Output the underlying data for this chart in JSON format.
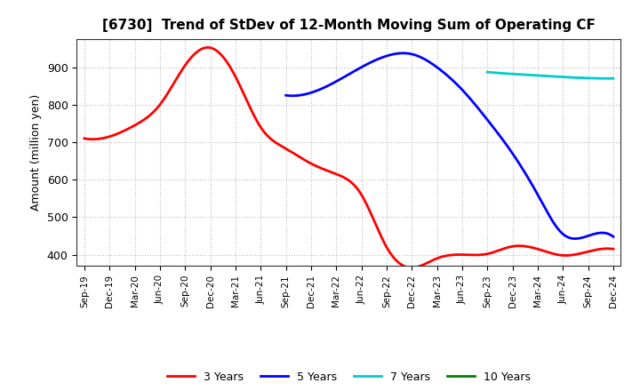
{
  "title": "[6730]  Trend of StDev of 12-Month Moving Sum of Operating CF",
  "ylabel": "Amount (million yen)",
  "background_color": "#ffffff",
  "plot_bg_color": "#ffffff",
  "grid_color": "#aaaaaa",
  "ylim": [
    370,
    975
  ],
  "yticks": [
    400,
    500,
    600,
    700,
    800,
    900
  ],
  "legend_entries": [
    "3 Years",
    "5 Years",
    "7 Years",
    "10 Years"
  ],
  "legend_colors": [
    "#ff0000",
    "#0000ff",
    "#00cccc",
    "#008000"
  ],
  "x_labels": [
    "Sep-19",
    "Dec-19",
    "Mar-20",
    "Jun-20",
    "Sep-20",
    "Dec-20",
    "Mar-21",
    "Jun-21",
    "Sep-21",
    "Dec-21",
    "Mar-22",
    "Jun-22",
    "Sep-22",
    "Dec-22",
    "Mar-23",
    "Jun-23",
    "Sep-23",
    "Dec-23",
    "Mar-24",
    "Jun-24",
    "Sep-24",
    "Dec-24"
  ],
  "series_3y_x": [
    0,
    1,
    2,
    3,
    4,
    5,
    6,
    7,
    8,
    9,
    10,
    11,
    12,
    13,
    14,
    15,
    16,
    17,
    18,
    19,
    20,
    21
  ],
  "series_3y_y": [
    710,
    715,
    745,
    800,
    905,
    952,
    875,
    740,
    683,
    643,
    615,
    560,
    420,
    365,
    390,
    400,
    402,
    422,
    415,
    398,
    408,
    415
  ],
  "series_5y_x": [
    8,
    9,
    10,
    11,
    12,
    13,
    14,
    15,
    16,
    17,
    18,
    19,
    20,
    21
  ],
  "series_5y_y": [
    825,
    832,
    862,
    900,
    930,
    935,
    900,
    840,
    760,
    670,
    560,
    455,
    450,
    448
  ],
  "series_7y_x": [
    16,
    17,
    18,
    19,
    20,
    21
  ],
  "series_7y_y": [
    887,
    882,
    878,
    874,
    871,
    870
  ],
  "series_10y_x": [],
  "series_10y_y": []
}
